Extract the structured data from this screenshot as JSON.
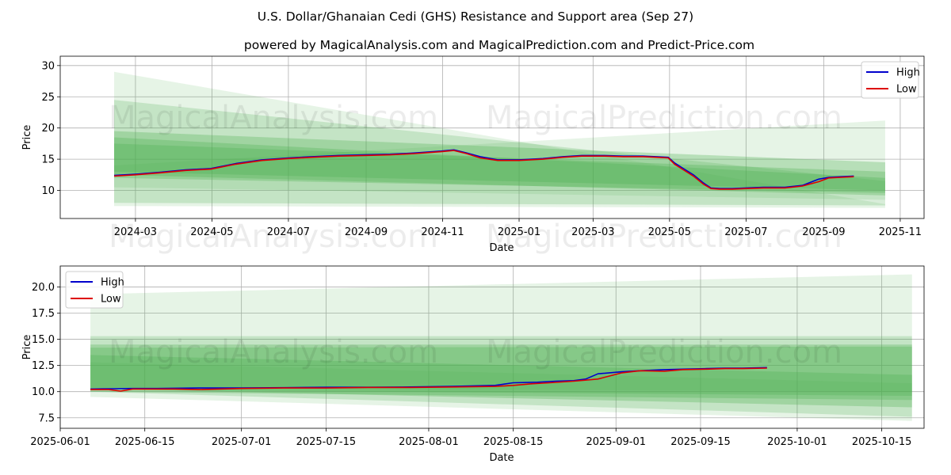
{
  "title": "U.S. Dollar/Ghanaian Cedi (GHS) Resistance and Support area (Sep 27)",
  "subtitle": "powered by MagicalAnalysis.com and MagicalPrediction.com and Predict-Price.com",
  "watermarks": [
    "MagicalAnalysis.com",
    "MagicalPrediction.com"
  ],
  "colors": {
    "high": "#0000cc",
    "low": "#dd0000",
    "band": "#4caf50"
  },
  "chart_data": [
    {
      "type": "line",
      "panel": "top",
      "xlabel": "Date",
      "ylabel": "Price",
      "xlim": [
        "2024-01-01",
        "2025-11-20"
      ],
      "ylim": [
        5.5,
        31.5
      ],
      "grid": true,
      "legend": "top-right",
      "x_ticks": [
        "2024-03",
        "2024-05",
        "2024-07",
        "2024-09",
        "2024-11",
        "2025-01",
        "2025-03",
        "2025-05",
        "2025-07",
        "2025-09",
        "2025-11"
      ],
      "y_ticks": [
        10,
        15,
        20,
        25,
        30
      ],
      "legend_labels": [
        "High",
        "Low"
      ],
      "bands": [
        {
          "x": [
            "2024-02-13",
            "2025-10-20"
          ],
          "lower": [
            7.5,
            7.2
          ],
          "upper": [
            29.0,
            7.8
          ]
        },
        {
          "x": [
            "2024-02-13",
            "2025-10-20"
          ],
          "lower": [
            8.0,
            7.6
          ],
          "upper": [
            24.5,
            11.5
          ]
        },
        {
          "x": [
            "2024-02-13",
            "2025-10-20"
          ],
          "lower": [
            12.5,
            9.2
          ],
          "upper": [
            19.5,
            14.5
          ]
        },
        {
          "x": [
            "2024-02-13",
            "2025-10-20"
          ],
          "lower": [
            13.0,
            10.0
          ],
          "upper": [
            17.5,
            13.0
          ]
        },
        {
          "x": [
            "2024-02-13",
            "2025-10-20"
          ],
          "lower": [
            12.0,
            9.6
          ],
          "upper": [
            18.5,
            12.0
          ]
        },
        {
          "x": [
            "2024-02-13",
            "2025-10-20"
          ],
          "lower": [
            10.5,
            8.5
          ],
          "upper": [
            14.0,
            21.2
          ]
        }
      ],
      "series": [
        {
          "name": "High",
          "x": [
            "2024-02-13",
            "2024-03-01",
            "2024-03-20",
            "2024-04-10",
            "2024-04-30",
            "2024-05-20",
            "2024-06-10",
            "2024-07-01",
            "2024-07-20",
            "2024-08-10",
            "2024-08-31",
            "2024-09-20",
            "2024-10-10",
            "2024-10-31",
            "2024-11-10",
            "2024-11-20",
            "2024-12-01",
            "2024-12-15",
            "2025-01-01",
            "2025-01-20",
            "2025-02-05",
            "2025-02-20",
            "2025-03-10",
            "2025-03-25",
            "2025-04-10",
            "2025-04-20",
            "2025-04-30",
            "2025-05-05",
            "2025-05-12",
            "2025-05-20",
            "2025-05-28",
            "2025-06-03",
            "2025-06-10",
            "2025-06-20",
            "2025-07-01",
            "2025-07-15",
            "2025-08-01",
            "2025-08-15",
            "2025-08-28",
            "2025-09-05",
            "2025-09-15",
            "2025-09-25"
          ],
          "y": [
            12.4,
            12.6,
            12.9,
            13.3,
            13.5,
            14.3,
            14.9,
            15.2,
            15.4,
            15.6,
            15.7,
            15.8,
            16.0,
            16.3,
            16.5,
            16.0,
            15.4,
            14.9,
            14.9,
            15.1,
            15.4,
            15.6,
            15.6,
            15.5,
            15.5,
            15.4,
            15.3,
            14.4,
            13.5,
            12.5,
            11.2,
            10.4,
            10.3,
            10.3,
            10.4,
            10.5,
            10.5,
            10.8,
            11.8,
            12.1,
            12.2,
            12.3
          ]
        },
        {
          "name": "Low",
          "x": [
            "2024-02-13",
            "2024-03-01",
            "2024-03-20",
            "2024-04-10",
            "2024-04-30",
            "2024-05-20",
            "2024-06-10",
            "2024-07-01",
            "2024-07-20",
            "2024-08-10",
            "2024-08-31",
            "2024-09-20",
            "2024-10-10",
            "2024-10-31",
            "2024-11-10",
            "2024-11-20",
            "2024-12-01",
            "2024-12-15",
            "2025-01-01",
            "2025-01-20",
            "2025-02-05",
            "2025-02-20",
            "2025-03-10",
            "2025-03-25",
            "2025-04-10",
            "2025-04-20",
            "2025-04-30",
            "2025-05-05",
            "2025-05-12",
            "2025-05-20",
            "2025-05-28",
            "2025-06-03",
            "2025-06-10",
            "2025-06-20",
            "2025-07-01",
            "2025-07-15",
            "2025-08-01",
            "2025-08-15",
            "2025-08-28",
            "2025-09-05",
            "2025-09-15",
            "2025-09-25"
          ],
          "y": [
            12.3,
            12.5,
            12.8,
            13.2,
            13.4,
            14.2,
            14.8,
            15.1,
            15.3,
            15.5,
            15.6,
            15.7,
            15.9,
            16.2,
            16.4,
            15.9,
            15.2,
            14.8,
            14.8,
            15.0,
            15.3,
            15.5,
            15.5,
            15.4,
            15.4,
            15.3,
            15.2,
            14.2,
            13.3,
            12.3,
            11.0,
            10.3,
            10.2,
            10.2,
            10.3,
            10.4,
            10.4,
            10.7,
            11.4,
            12.0,
            12.1,
            12.2
          ]
        }
      ]
    },
    {
      "type": "line",
      "panel": "bottom",
      "xlabel": "Date",
      "ylabel": "Price",
      "xlim": [
        "2025-06-01",
        "2025-10-22"
      ],
      "ylim": [
        6.5,
        22.0
      ],
      "grid": true,
      "legend": "top-left",
      "x_ticks": [
        "2025-06-01",
        "2025-06-15",
        "2025-07-01",
        "2025-07-15",
        "2025-08-01",
        "2025-08-15",
        "2025-09-01",
        "2025-09-15",
        "2025-10-01",
        "2025-10-15"
      ],
      "y_ticks": [
        7.5,
        10.0,
        12.5,
        15.0,
        17.5,
        20.0
      ],
      "legend_labels": [
        "High",
        "Low"
      ],
      "bands": [
        {
          "x": [
            "2025-06-06",
            "2025-10-20"
          ],
          "lower": [
            9.5,
            7.2
          ],
          "upper": [
            19.3,
            21.2
          ]
        },
        {
          "x": [
            "2025-06-06",
            "2025-10-20"
          ],
          "lower": [
            10.0,
            7.6
          ],
          "upper": [
            15.3,
            15.3
          ]
        },
        {
          "x": [
            "2025-06-06",
            "2025-10-20"
          ],
          "lower": [
            10.3,
            8.5
          ],
          "upper": [
            14.5,
            14.5
          ]
        },
        {
          "x": [
            "2025-06-06",
            "2025-10-20"
          ],
          "lower": [
            10.0,
            9.2
          ],
          "upper": [
            14.2,
            14.3
          ]
        },
        {
          "x": [
            "2025-06-06",
            "2025-10-20"
          ],
          "lower": [
            10.2,
            9.6
          ],
          "upper": [
            13.5,
            11.6
          ]
        },
        {
          "x": [
            "2025-06-06",
            "2025-10-20"
          ],
          "lower": [
            10.4,
            10.0
          ],
          "upper": [
            12.8,
            10.8
          ]
        }
      ],
      "series": [
        {
          "name": "High",
          "x": [
            "2025-06-06",
            "2025-06-10",
            "2025-06-13",
            "2025-06-17",
            "2025-06-24",
            "2025-07-01",
            "2025-07-08",
            "2025-07-15",
            "2025-07-22",
            "2025-07-29",
            "2025-08-05",
            "2025-08-12",
            "2025-08-15",
            "2025-08-19",
            "2025-08-22",
            "2025-08-25",
            "2025-08-27",
            "2025-08-29",
            "2025-09-02",
            "2025-09-05",
            "2025-09-09",
            "2025-09-12",
            "2025-09-16",
            "2025-09-19",
            "2025-09-22",
            "2025-09-26"
          ],
          "y": [
            10.25,
            10.28,
            10.3,
            10.3,
            10.35,
            10.35,
            10.38,
            10.42,
            10.42,
            10.45,
            10.5,
            10.6,
            10.85,
            10.9,
            11.0,
            11.05,
            11.2,
            11.7,
            11.9,
            12.0,
            12.1,
            12.15,
            12.2,
            12.25,
            12.25,
            12.3
          ]
        },
        {
          "name": "Low",
          "x": [
            "2025-06-06",
            "2025-06-09",
            "2025-06-11",
            "2025-06-13",
            "2025-06-20",
            "2025-06-24",
            "2025-07-01",
            "2025-07-08",
            "2025-07-15",
            "2025-07-22",
            "2025-07-29",
            "2025-08-05",
            "2025-08-12",
            "2025-08-15",
            "2025-08-18",
            "2025-08-21",
            "2025-08-25",
            "2025-08-29",
            "2025-09-02",
            "2025-09-05",
            "2025-09-09",
            "2025-09-12",
            "2025-09-16",
            "2025-09-19",
            "2025-09-22",
            "2025-09-26"
          ],
          "y": [
            10.2,
            10.2,
            10.05,
            10.25,
            10.25,
            10.2,
            10.3,
            10.35,
            10.35,
            10.4,
            10.4,
            10.45,
            10.5,
            10.6,
            10.75,
            10.85,
            11.0,
            11.2,
            11.8,
            12.0,
            11.95,
            12.1,
            12.15,
            12.2,
            12.2,
            12.25
          ]
        }
      ]
    }
  ]
}
